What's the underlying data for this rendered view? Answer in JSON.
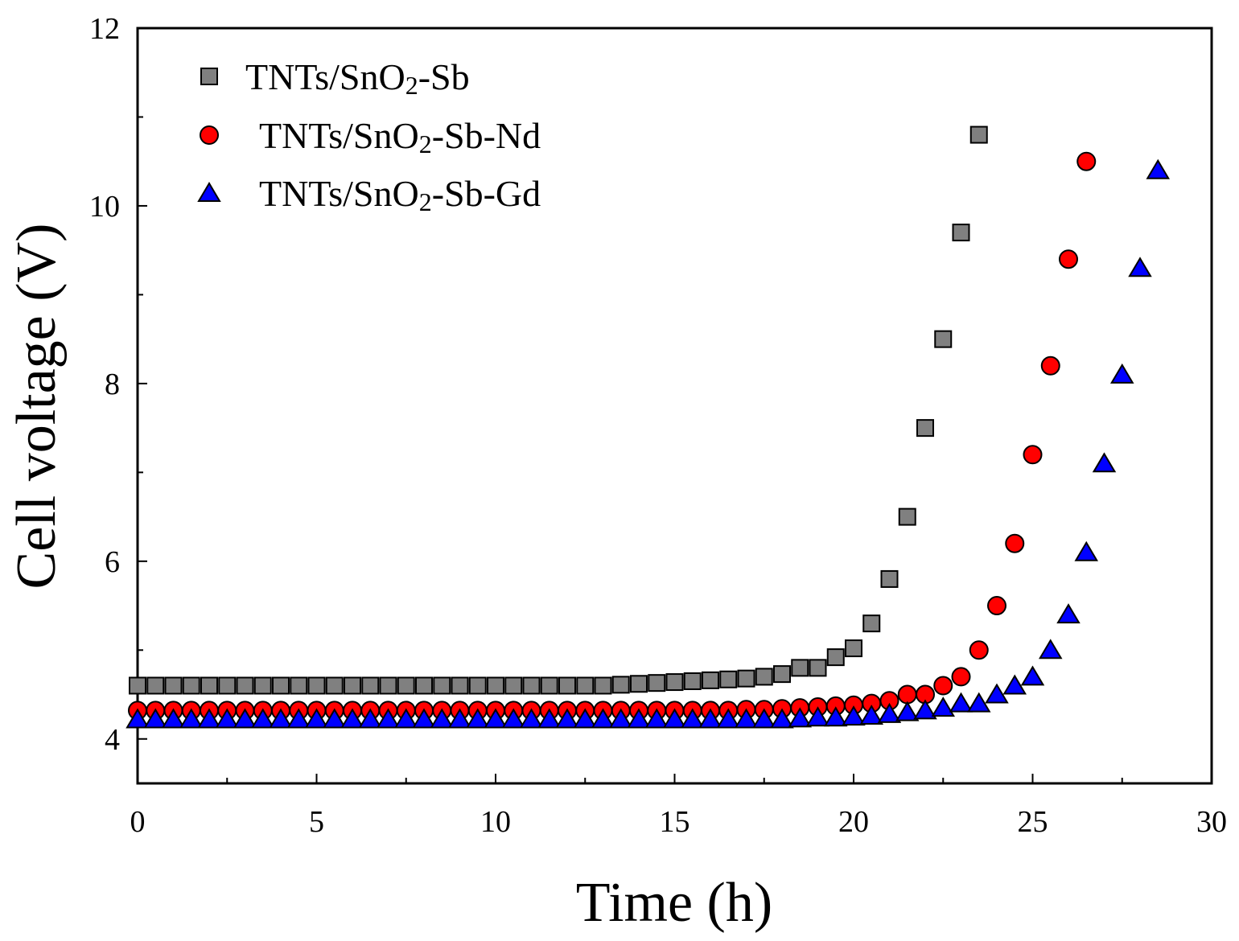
{
  "chart_data": {
    "type": "scatter",
    "title": "",
    "xlabel": "Time (h)",
    "ylabel": "Cell voltage (V)",
    "xlim": [
      0,
      30
    ],
    "ylim": [
      3.5,
      12
    ],
    "xticks": [
      0,
      5,
      10,
      15,
      20,
      25,
      30
    ],
    "yticks": [
      4,
      6,
      8,
      10,
      12
    ],
    "grid": false,
    "legend_position": "top-left",
    "series": [
      {
        "name": "TNTs/SnO2-Sb",
        "legend_main": "TNTs/SnO",
        "legend_sub": "2",
        "legend_tail": "-Sb",
        "marker": "square",
        "color": "#808080",
        "x": [
          0,
          0.5,
          1,
          1.5,
          2,
          2.5,
          3,
          3.5,
          4,
          4.5,
          5,
          5.5,
          6,
          6.5,
          7,
          7.5,
          8,
          8.5,
          9,
          9.5,
          10,
          10.5,
          11,
          11.5,
          12,
          12.5,
          13,
          13.5,
          14,
          14.5,
          15,
          15.5,
          16,
          16.5,
          17,
          17.5,
          18,
          18.5,
          19,
          19.5,
          20,
          20.5,
          21,
          21.5,
          22,
          22.5,
          23,
          23.5
        ],
        "y": [
          4.6,
          4.6,
          4.6,
          4.6,
          4.6,
          4.6,
          4.6,
          4.6,
          4.6,
          4.6,
          4.6,
          4.6,
          4.6,
          4.6,
          4.6,
          4.6,
          4.6,
          4.6,
          4.6,
          4.6,
          4.6,
          4.6,
          4.6,
          4.6,
          4.6,
          4.6,
          4.6,
          4.61,
          4.62,
          4.63,
          4.64,
          4.65,
          4.66,
          4.67,
          4.68,
          4.7,
          4.73,
          4.8,
          4.8,
          4.92,
          5.02,
          5.3,
          5.8,
          6.5,
          7.5,
          8.5,
          9.7,
          10.8
        ]
      },
      {
        "name": "TNTs/SnO2-Sb-Nd",
        "legend_main": "TNTs/SnO",
        "legend_sub": "2",
        "legend_tail": "-Sb-Nd",
        "marker": "circle",
        "color": "#ff0000",
        "x": [
          0,
          0.5,
          1,
          1.5,
          2,
          2.5,
          3,
          3.5,
          4,
          4.5,
          5,
          5.5,
          6,
          6.5,
          7,
          7.5,
          8,
          8.5,
          9,
          9.5,
          10,
          10.5,
          11,
          11.5,
          12,
          12.5,
          13,
          13.5,
          14,
          14.5,
          15,
          15.5,
          16,
          16.5,
          17,
          17.5,
          18,
          18.5,
          19,
          19.5,
          20,
          20.5,
          21,
          21.5,
          22,
          22.5,
          23,
          23.5,
          24,
          24.5,
          25,
          25.5,
          26,
          26.5
        ],
        "y": [
          4.32,
          4.32,
          4.32,
          4.32,
          4.32,
          4.32,
          4.32,
          4.32,
          4.32,
          4.32,
          4.32,
          4.32,
          4.32,
          4.32,
          4.32,
          4.32,
          4.32,
          4.32,
          4.32,
          4.32,
          4.32,
          4.32,
          4.32,
          4.32,
          4.32,
          4.32,
          4.32,
          4.32,
          4.32,
          4.32,
          4.32,
          4.32,
          4.32,
          4.32,
          4.33,
          4.33,
          4.34,
          4.35,
          4.36,
          4.37,
          4.38,
          4.4,
          4.43,
          4.5,
          4.5,
          4.6,
          4.7,
          5.0,
          5.5,
          6.2,
          7.2,
          8.2,
          9.4,
          10.5
        ]
      },
      {
        "name": "TNTs/SnO2-Sb-Gd",
        "legend_main": "TNTs/SnO",
        "legend_sub": "2",
        "legend_tail": "-Sb-Gd",
        "marker": "triangle",
        "color": "#0000ff",
        "x": [
          0,
          0.5,
          1,
          1.5,
          2,
          2.5,
          3,
          3.5,
          4,
          4.5,
          5,
          5.5,
          6,
          6.5,
          7,
          7.5,
          8,
          8.5,
          9,
          9.5,
          10,
          10.5,
          11,
          11.5,
          12,
          12.5,
          13,
          13.5,
          14,
          14.5,
          15,
          15.5,
          16,
          16.5,
          17,
          17.5,
          18,
          18.5,
          19,
          19.5,
          20,
          20.5,
          21,
          21.5,
          22,
          22.5,
          23,
          23.5,
          24,
          24.5,
          25,
          25.5,
          26,
          26.5,
          27,
          27.5,
          28,
          28.5
        ],
        "y": [
          4.22,
          4.22,
          4.22,
          4.22,
          4.22,
          4.22,
          4.22,
          4.22,
          4.22,
          4.22,
          4.22,
          4.22,
          4.22,
          4.22,
          4.22,
          4.22,
          4.22,
          4.22,
          4.22,
          4.22,
          4.22,
          4.22,
          4.22,
          4.22,
          4.22,
          4.22,
          4.22,
          4.22,
          4.22,
          4.22,
          4.22,
          4.22,
          4.22,
          4.22,
          4.22,
          4.22,
          4.22,
          4.23,
          4.24,
          4.24,
          4.25,
          4.26,
          4.28,
          4.3,
          4.32,
          4.35,
          4.4,
          4.4,
          4.5,
          4.6,
          4.7,
          5.0,
          5.4,
          6.1,
          7.1,
          8.1,
          9.3,
          10.4
        ]
      }
    ]
  }
}
